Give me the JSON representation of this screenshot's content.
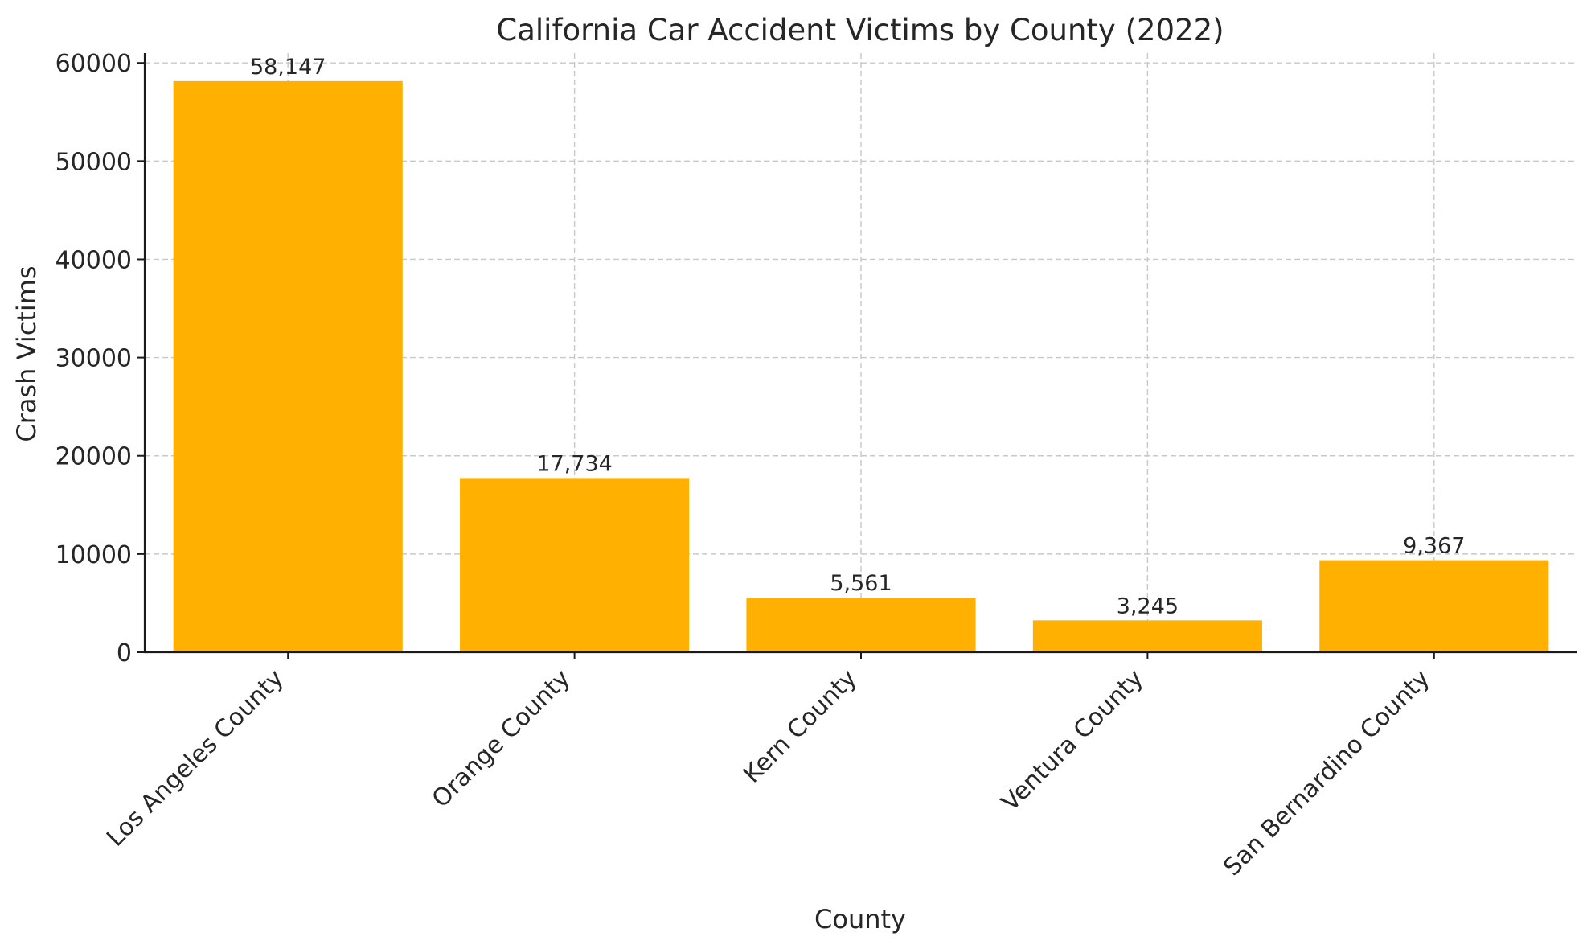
{
  "chart_data": {
    "type": "bar",
    "title": "California Car Accident Victims by County (2022)",
    "xlabel": "County",
    "ylabel": "Crash Victims",
    "categories": [
      "Los Angeles County",
      "Orange County",
      "Kern County",
      "Ventura County",
      "San Bernardino County"
    ],
    "values": [
      58147,
      17734,
      5561,
      3245,
      9367
    ],
    "value_labels": [
      "58,147",
      "17,734",
      "5,561",
      "3,245",
      "9,367"
    ],
    "ylim": [
      0,
      61000
    ],
    "yticks": [
      0,
      10000,
      20000,
      30000,
      40000,
      50000,
      60000
    ],
    "ytick_labels": [
      "0",
      "10000",
      "20000",
      "30000",
      "40000",
      "50000",
      "60000"
    ],
    "grid": true,
    "bar_color": "#ffb000"
  }
}
